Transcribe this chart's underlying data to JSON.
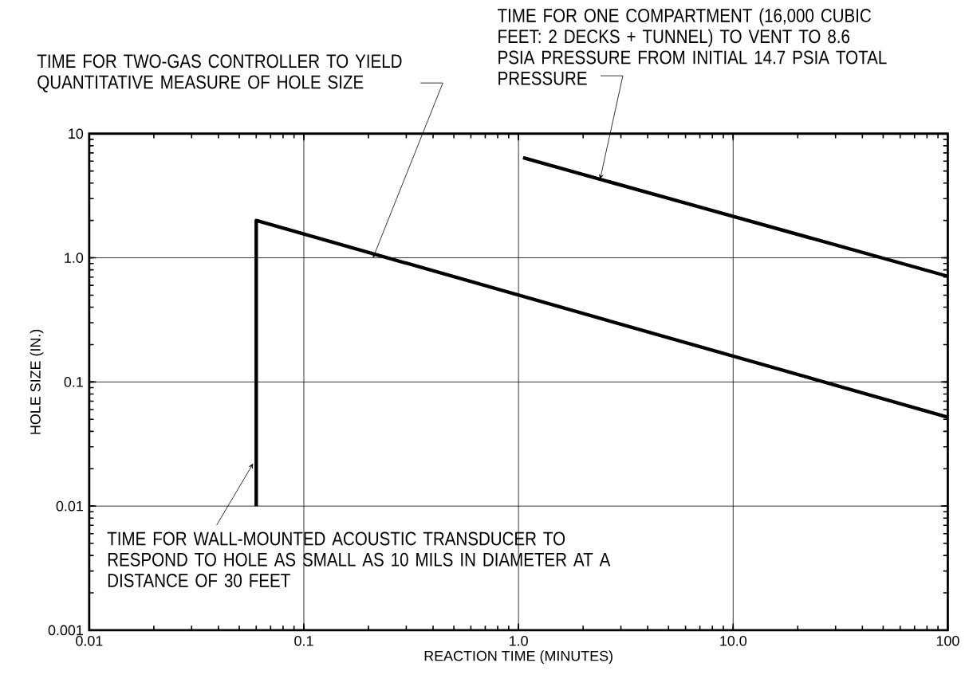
{
  "chart_data": {
    "type": "line",
    "xlabel": "REACTION TIME (MINUTES)",
    "ylabel": "HOLE SIZE (IN.)",
    "log": "xy",
    "grid": true,
    "xlim": [
      0.01,
      100
    ],
    "ylim": [
      0.001,
      10
    ],
    "xticks": [
      0.01,
      0.1,
      {
        "value": 1,
        "label": "1.0"
      },
      {
        "value": 10,
        "label": "10.0"
      },
      100
    ],
    "yticks": [
      {
        "value": 0.001,
        "label": "0.001"
      },
      0.01,
      0.1,
      {
        "value": 1,
        "label": "1.0"
      },
      10
    ],
    "series": [
      {
        "color": "#000000",
        "x": [
          0.06,
          0.06,
          100
        ],
        "values": [
          0.01,
          2.0,
          0.052
        ]
      },
      {
        "color": "#000000",
        "x": [
          1.05,
          100
        ],
        "values": [
          6.4,
          0.71
        ]
      }
    ],
    "annotations": [
      {
        "text": "TIME FOR TWO-GAS CONTROLLER TO YIELD QUANTITATIVE MEASURE OF HOLE SIZE",
        "x": 0.21,
        "y": 1.0
      },
      {
        "text": "TIME FOR ONE COMPARTMENT (16,000 CUBIC FEET: 2 DECKS + TUNNEL) TO VENT TO 8.6 PSIA PRESSURE FROM INITIAL 14.7 PSIA TOTAL PRESSURE",
        "x": 2.4,
        "y": 4.3
      },
      {
        "text": "TIME FOR WALL-MOUNTED ACOUSTIC TRANSDUCER TO RESPOND TO HOLE AS SMALL AS 10 MILS IN DIAMETER AT A DISTANCE OF 30 FEET",
        "x": 0.058,
        "y": 0.022
      }
    ]
  }
}
